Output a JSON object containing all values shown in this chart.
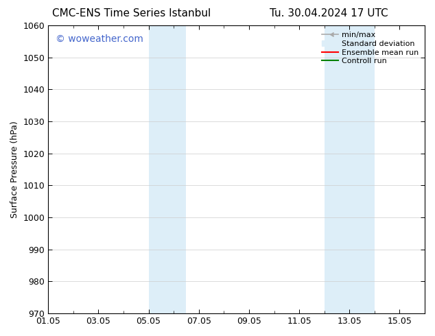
{
  "title_left": "CMC-ENS Time Series Istanbul",
  "title_right": "Tu. 30.04.2024 17 UTC",
  "ylabel": "Surface Pressure (hPa)",
  "ylim": [
    970,
    1060
  ],
  "yticks": [
    970,
    980,
    990,
    1000,
    1010,
    1020,
    1030,
    1040,
    1050,
    1060
  ],
  "xtick_labels": [
    "01.05",
    "03.05",
    "05.05",
    "07.05",
    "09.05",
    "11.05",
    "13.05",
    "15.05"
  ],
  "xtick_positions": [
    0,
    2,
    4,
    6,
    8,
    10,
    12,
    14
  ],
  "xlim": [
    0,
    15
  ],
  "shaded_bands": [
    {
      "x_start": 4,
      "x_end": 5.5
    },
    {
      "x_start": 11,
      "x_end": 13
    }
  ],
  "shaded_color": "#ddeef8",
  "background_color": "#ffffff",
  "watermark_text": "© woweather.com",
  "watermark_color": "#4466cc",
  "legend_entries": [
    {
      "label": "min/max",
      "color": "#aaaaaa",
      "lw": 1.5
    },
    {
      "label": "Standard deviation",
      "color": "#ccddee",
      "lw": 8
    },
    {
      "label": "Ensemble mean run",
      "color": "#ff0000",
      "lw": 1.5
    },
    {
      "label": "Controll run",
      "color": "#008000",
      "lw": 1.5
    }
  ],
  "title_fontsize": 11,
  "ylabel_fontsize": 9,
  "tick_fontsize": 9,
  "legend_fontsize": 8,
  "watermark_fontsize": 10
}
